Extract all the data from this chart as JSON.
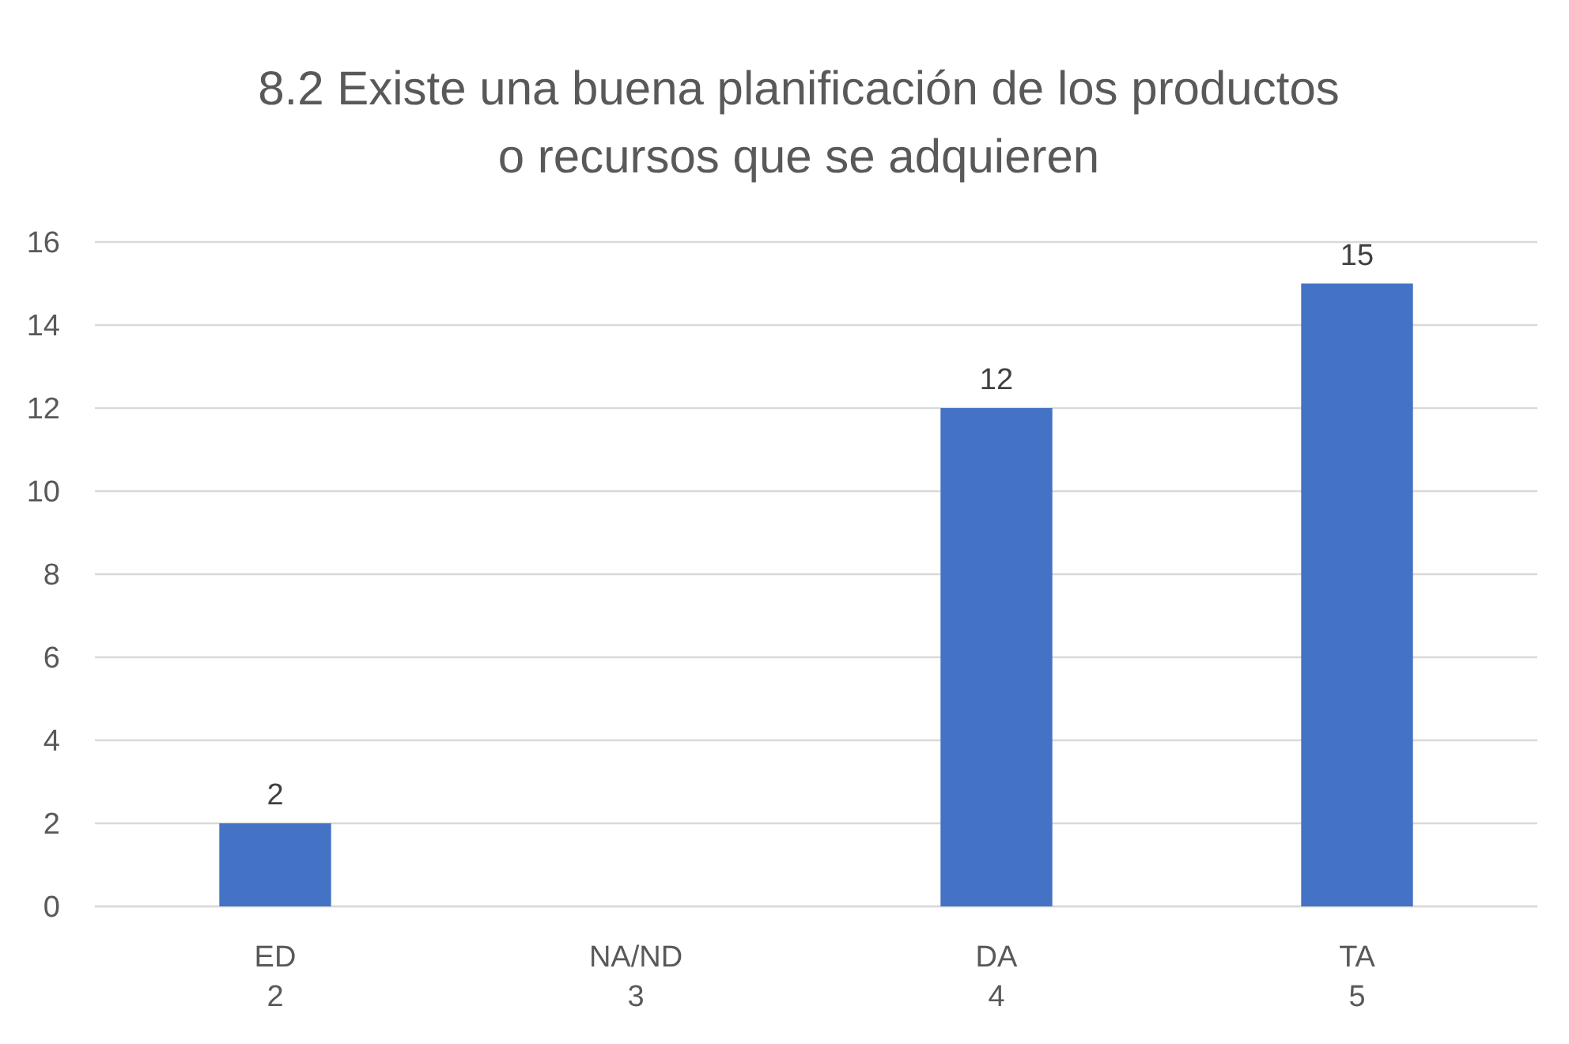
{
  "chart_data": {
    "type": "bar",
    "title": "8.2 Existe una buena planificación de los productos\no recursos que se adquieren",
    "categories": [
      "ED\n2",
      "NA/ND\n3",
      "DA\n4",
      "TA\n5"
    ],
    "values": [
      2,
      null,
      12,
      15
    ],
    "color": "#4472c4",
    "ylim": [
      0,
      16
    ],
    "yticks": [
      0,
      2,
      4,
      6,
      8,
      10,
      12,
      14,
      16
    ],
    "grid": "y",
    "data_labels": true
  }
}
